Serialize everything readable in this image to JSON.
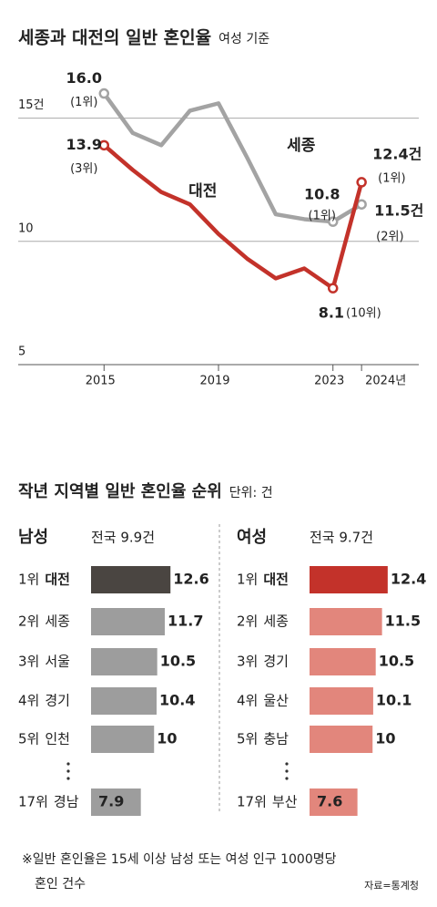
{
  "chart_data": [
    {
      "type": "line",
      "title": "세종과 대전의 일반 혼인율",
      "subtitle": "여성 기준",
      "x": [
        2015,
        2016,
        2017,
        2018,
        2019,
        2020,
        2021,
        2022,
        2023,
        2024
      ],
      "xlim": [
        2012,
        2026
      ],
      "xticks": [
        2015,
        2019,
        2023,
        {
          "value": 2024,
          "label": "2024년"
        }
      ],
      "ylim": [
        5,
        17.5
      ],
      "yticks": [
        5,
        10,
        {
          "value": 15,
          "label": "15건"
        }
      ],
      "grid": true,
      "series": [
        {
          "name": "세종",
          "color": "#a3a3a3",
          "values": [
            16.0,
            14.4,
            13.9,
            15.3,
            15.6,
            13.4,
            11.1,
            10.9,
            10.8,
            11.5
          ],
          "value_labels": [
            "16.0",
            null,
            null,
            null,
            null,
            null,
            null,
            null,
            "10.8",
            "11.5건"
          ],
          "ranks": [
            "(1위)",
            null,
            null,
            null,
            null,
            null,
            null,
            null,
            "(1위)",
            "(2위)"
          ]
        },
        {
          "name": "대전",
          "color": "#c3322a",
          "values": [
            13.9,
            12.9,
            12.0,
            11.5,
            10.3,
            9.3,
            8.5,
            8.9,
            8.1,
            12.4
          ],
          "value_labels": [
            "13.9",
            null,
            null,
            null,
            null,
            null,
            null,
            null,
            "8.1",
            "12.4건"
          ],
          "ranks": [
            "(3위)",
            null,
            null,
            null,
            null,
            null,
            null,
            null,
            "(10위)",
            "(1위)"
          ]
        }
      ]
    },
    {
      "type": "bar",
      "orientation": "horizontal",
      "title": "남성",
      "note": "전국 9.9건",
      "ranks": [
        "1위",
        "2위",
        "3위",
        "4위",
        "5위",
        "17위"
      ],
      "categories": [
        "대전",
        "세종",
        "서울",
        "경기",
        "인천",
        "경남"
      ],
      "values": [
        12.6,
        11.7,
        10.5,
        10.4,
        10,
        7.9
      ],
      "xlim": [
        0,
        13
      ],
      "colors": [
        "#4a4541",
        "#9d9d9d",
        "#9d9d9d",
        "#9d9d9d",
        "#9d9d9d",
        "#9d9d9d"
      ]
    },
    {
      "type": "bar",
      "orientation": "horizontal",
      "title": "여성",
      "note": "전국 9.7건",
      "ranks": [
        "1위",
        "2위",
        "3위",
        "4위",
        "5위",
        "17위"
      ],
      "categories": [
        "대전",
        "세종",
        "경기",
        "울산",
        "충남",
        "부산"
      ],
      "values": [
        12.4,
        11.5,
        10.5,
        10.1,
        10,
        7.6
      ],
      "xlim": [
        0,
        13
      ],
      "colors": [
        "#c3322a",
        "#e2867c",
        "#e2867c",
        "#e2867c",
        "#e2867c",
        "#e2867c"
      ]
    }
  ],
  "section_title": "작년 지역별 일반 혼인율 순위",
  "section_unit": "단위: 건",
  "footnote": [
    "※일반 혼인율은 15세 이상 남성 또는 여성 인구 1000명당",
    "혼인 건수"
  ],
  "source": "자료=통계청"
}
